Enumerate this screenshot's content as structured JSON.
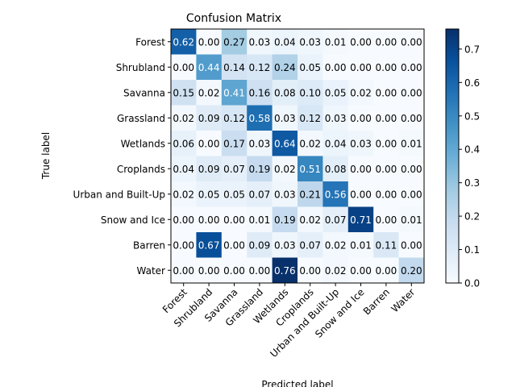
{
  "chart_data": {
    "type": "heatmap",
    "title": "Confusion Matrix",
    "xlabel": "Predicted label",
    "ylabel": "True label",
    "labels": [
      "Forest",
      "Shrubland",
      "Savanna",
      "Grassland",
      "Wetlands",
      "Croplands",
      "Urban and Built-Up",
      "Snow and Ice",
      "Barren",
      "Water"
    ],
    "matrix": [
      [
        0.62,
        0.0,
        0.27,
        0.03,
        0.04,
        0.03,
        0.01,
        0.0,
        0.0,
        0.0
      ],
      [
        0.0,
        0.44,
        0.14,
        0.12,
        0.24,
        0.05,
        0.0,
        0.0,
        0.0,
        0.0
      ],
      [
        0.15,
        0.02,
        0.41,
        0.16,
        0.08,
        0.1,
        0.05,
        0.02,
        0.0,
        0.0
      ],
      [
        0.02,
        0.09,
        0.12,
        0.58,
        0.03,
        0.12,
        0.03,
        0.0,
        0.0,
        0.0
      ],
      [
        0.06,
        0.0,
        0.17,
        0.03,
        0.64,
        0.02,
        0.04,
        0.03,
        0.0,
        0.01
      ],
      [
        0.04,
        0.09,
        0.07,
        0.19,
        0.02,
        0.51,
        0.08,
        0.0,
        0.0,
        0.0
      ],
      [
        0.02,
        0.05,
        0.05,
        0.07,
        0.03,
        0.21,
        0.56,
        0.0,
        0.0,
        0.0
      ],
      [
        0.0,
        0.0,
        0.0,
        0.01,
        0.19,
        0.02,
        0.07,
        0.71,
        0.0,
        0.01
      ],
      [
        0.0,
        0.67,
        0.0,
        0.09,
        0.03,
        0.07,
        0.02,
        0.01,
        0.11,
        0.0
      ],
      [
        0.0,
        0.0,
        0.0,
        0.0,
        0.76,
        0.0,
        0.02,
        0.0,
        0.0,
        0.2
      ]
    ],
    "colorbar": {
      "range": [
        0.0,
        0.76
      ],
      "ticks": [
        0.0,
        0.1,
        0.2,
        0.3,
        0.4,
        0.5,
        0.6,
        0.7
      ],
      "tick_labels": [
        "0.0",
        "0.1",
        "0.2",
        "0.3",
        "0.4",
        "0.5",
        "0.6",
        "0.7"
      ],
      "colormap": "Blues"
    },
    "text_threshold": 0.38
  }
}
